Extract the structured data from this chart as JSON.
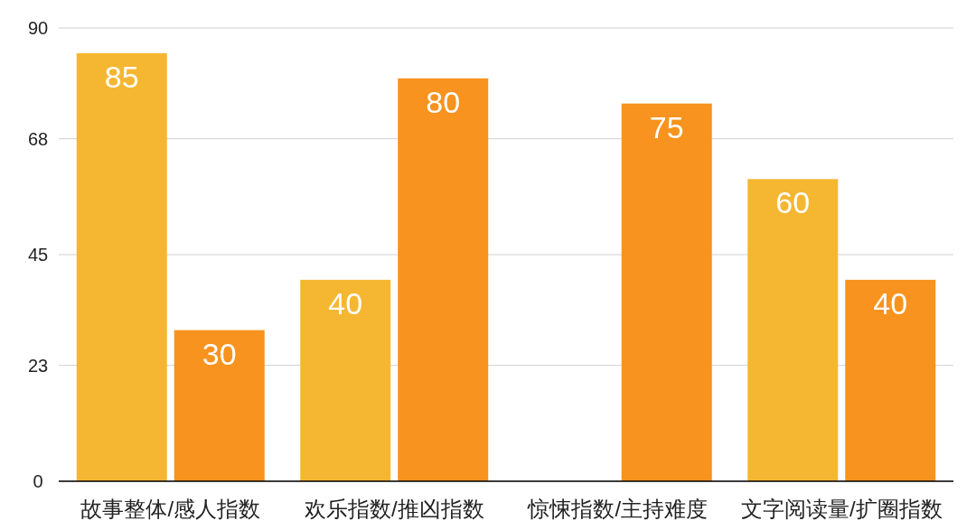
{
  "chart_data": {
    "type": "bar",
    "categories": [
      "故事整体/感人指数",
      "欢乐指数/推凶指数",
      "惊悚指数/主持难度",
      "文字阅读量/扩圈指数"
    ],
    "series": [
      {
        "color": "#f5b731",
        "values": [
          85,
          40,
          null,
          60
        ]
      },
      {
        "color": "#f7931e",
        "values": [
          30,
          80,
          75,
          40
        ]
      }
    ],
    "ylim": [
      0,
      90
    ],
    "yticks": [
      0,
      23,
      45,
      68,
      90
    ],
    "grid": "y",
    "data_labels": true
  }
}
